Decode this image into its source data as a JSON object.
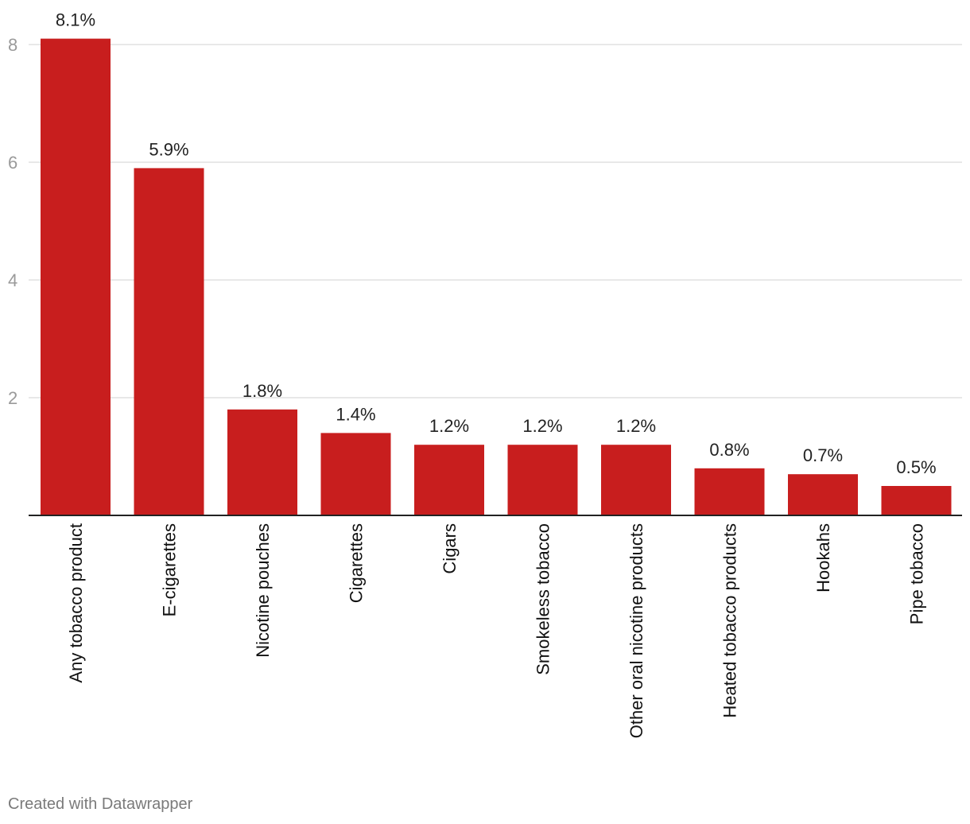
{
  "chart_data": {
    "type": "bar",
    "categories": [
      "Any tobacco product",
      "E-cigarettes",
      "Nicotine pouches",
      "Cigarettes",
      "Cigars",
      "Smokeless tobacco",
      "Other oral nicotine products",
      "Heated tobacco products",
      "Hookahs",
      "Pipe tobacco"
    ],
    "values": [
      8.1,
      5.9,
      1.8,
      1.4,
      1.2,
      1.2,
      1.2,
      0.8,
      0.7,
      0.5
    ],
    "value_labels": [
      "8.1%",
      "5.9%",
      "1.8%",
      "1.4%",
      "1.2%",
      "1.2%",
      "1.2%",
      "0.8%",
      "0.7%",
      "0.5%"
    ],
    "yticks": [
      2,
      4,
      6,
      8
    ],
    "ylim": [
      0,
      8
    ],
    "grid": true,
    "bar_color": "#c81e1e"
  },
  "footer": {
    "credit": "Created with Datawrapper"
  }
}
